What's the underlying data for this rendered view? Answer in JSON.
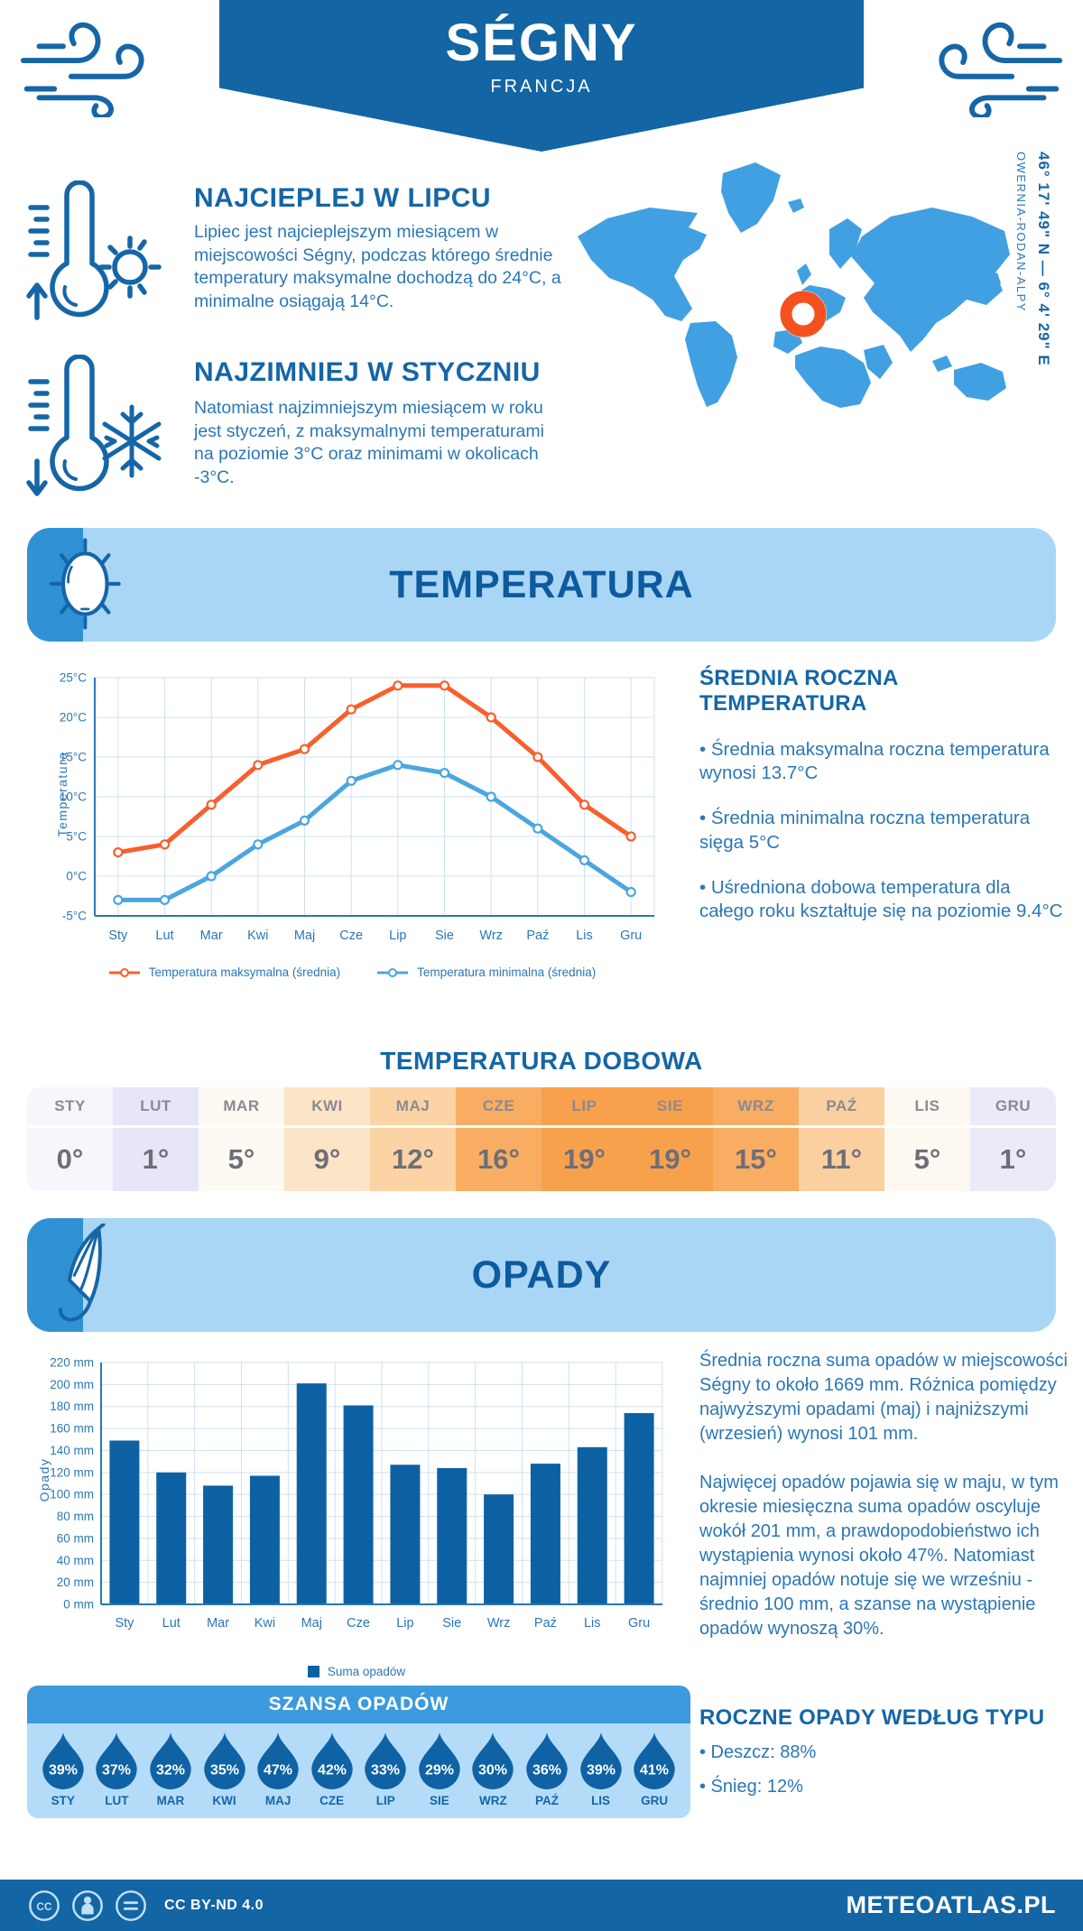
{
  "header": {
    "title": "SÉGNY",
    "country": "FRANCJA"
  },
  "intro": {
    "warm": {
      "title": "NAJCIEPLEJ W LIPCU",
      "text": "Lipiec jest najcieplejszym miesiącem w miejscowości Ségny, podczas którego średnie temperatury maksymalne dochodzą do 24°C, a minimalne osiągają 14°C."
    },
    "cold": {
      "title": "NAJZIMNIEJ W STYCZNIU",
      "text": "Natomiast najzimniejszym miesiącem w roku jest styczeń, z maksymalnymi temperaturami na poziomie 3°C oraz minimami w okolicach -3°C."
    },
    "coordinates": "46° 17' 49\" N — 6° 4' 29\" E",
    "region": "OWERNIA-RODAN-ALPY"
  },
  "temperature_section": {
    "title": "TEMPERATURA",
    "annual": {
      "heading": "ŚREDNIA ROCZNA TEMPERATURA",
      "bullets": [
        "• Średnia maksymalna roczna temperatura wynosi 13.7°C",
        "• Średnia minimalna roczna temperatura sięga 5°C",
        "• Uśredniona dobowa temperatura dla całego roku kształtuje się na poziomie 9.4°C"
      ]
    },
    "daily": {
      "title": "TEMPERATURA DOBOWA",
      "months": [
        "STY",
        "LUT",
        "MAR",
        "KWI",
        "MAJ",
        "CZE",
        "LIP",
        "SIE",
        "WRZ",
        "PAŹ",
        "LIS",
        "GRU"
      ],
      "values": [
        "0°",
        "1°",
        "5°",
        "9°",
        "12°",
        "16°",
        "19°",
        "19°",
        "15°",
        "11°",
        "5°",
        "1°"
      ],
      "cell_colors": [
        "#f6f6fc",
        "#e6e6f8",
        "#fdf9f3",
        "#fce4c6",
        "#fbd3a4",
        "#f9ad62",
        "#f8a14c",
        "#f8a14c",
        "#f9ad62",
        "#fbd0a0",
        "#fdf8f0",
        "#eaeaf8"
      ]
    }
  },
  "precipitation_section": {
    "title": "OPADY",
    "summary": [
      "Średnia roczna suma opadów w miejscowości Ségny to około 1669 mm. Różnica pomiędzy najwyższymi opadami (maj) i najniższymi (wrzesień) wynosi 101 mm.",
      "Najwięcej opadów pojawia się w maju, w tym okresie miesięczna suma opadów oscyluje wokół 201 mm, a prawdopodobieństwo ich wystąpienia wynosi około 47%. Natomiast najmniej opadów notuje się we wrześniu - średnio 100 mm, a szanse na wystąpienie opadów wynoszą 30%."
    ],
    "chance": {
      "title": "SZANSA OPADÓW",
      "months": [
        "STY",
        "LUT",
        "MAR",
        "KWI",
        "MAJ",
        "CZE",
        "LIP",
        "SIE",
        "WRZ",
        "PAŹ",
        "LIS",
        "GRU"
      ],
      "values": [
        "39%",
        "37%",
        "32%",
        "35%",
        "47%",
        "42%",
        "33%",
        "29%",
        "30%",
        "36%",
        "39%",
        "41%"
      ]
    },
    "types": {
      "heading": "ROCZNE OPADY WEDŁUG TYPU",
      "bullets": [
        "• Deszcz: 88%",
        "• Śnieg: 12%"
      ]
    }
  },
  "chart_data": [
    {
      "type": "line",
      "title": "Temperatura",
      "categories": [
        "Sty",
        "Lut",
        "Mar",
        "Kwi",
        "Maj",
        "Cze",
        "Lip",
        "Sie",
        "Wrz",
        "Paź",
        "Lis",
        "Gru"
      ],
      "ylabel": "Temperatura",
      "ylim": [
        -5,
        25
      ],
      "ytick_step": 5,
      "ytick_suffix": "°C",
      "grid": true,
      "legend_position": "bottom",
      "series": [
        {
          "name": "Temperatura maksymalna (średnia)",
          "color": "#f95f2b",
          "values": [
            3,
            4,
            9,
            14,
            16,
            21,
            24,
            24,
            20,
            15,
            9,
            5
          ]
        },
        {
          "name": "Temperatura minimalna (średnia)",
          "color": "#4ba6e0",
          "values": [
            -3,
            -3,
            0,
            4,
            7,
            12,
            14,
            13,
            10,
            6,
            2,
            -2
          ]
        }
      ]
    },
    {
      "type": "bar",
      "title": "Opady",
      "categories": [
        "Sty",
        "Lut",
        "Mar",
        "Kwi",
        "Maj",
        "Cze",
        "Lip",
        "Sie",
        "Wrz",
        "Paź",
        "Lis",
        "Gru"
      ],
      "ylabel": "Opady",
      "ylim": [
        0,
        220
      ],
      "ytick_step": 20,
      "ytick_suffix": " mm",
      "grid": true,
      "legend_position": "bottom",
      "series": [
        {
          "name": "Suma opadów",
          "color": "#0d61a3",
          "values": [
            149,
            120,
            108,
            117,
            201,
            181,
            127,
            124,
            100,
            128,
            143,
            174
          ]
        }
      ]
    }
  ],
  "footer": {
    "license": "CC BY-ND 4.0",
    "site": "METEOATLAS.PL"
  },
  "colors": {
    "primary_dark": "#1365a4",
    "heading_blue": "#1566a7",
    "body_blue": "#2b77b5",
    "banner_light": "#a9d6f5",
    "banner_accent": "#3092d4",
    "map_blue": "#41a0e2",
    "marker_orange": "#f4511e",
    "chance_header": "#3d9adc",
    "chance_body": "#b4dcf8",
    "drop_blue": "#0f62a4",
    "grid_line": "#cfe1f3",
    "axis_blue": "#2b77b5"
  }
}
